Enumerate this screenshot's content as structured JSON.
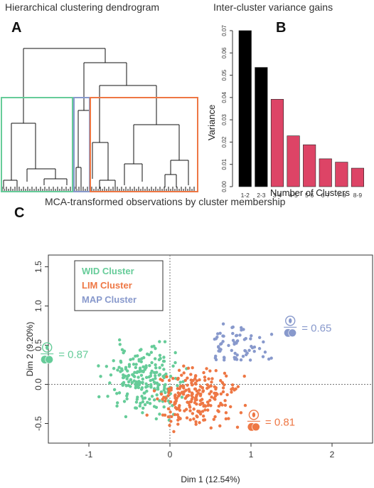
{
  "panels": {
    "a": {
      "letter": "A",
      "title": "Hierarchical clustering dendrogram"
    },
    "b": {
      "letter": "B",
      "title": "Inter-cluster variance gains"
    },
    "c": {
      "letter": "C",
      "title": "MCA-transformed observations by cluster membership"
    }
  },
  "colors": {
    "wid": "#66cc99",
    "lim": "#ee7744",
    "map": "#8899cc",
    "black_bar": "#000000",
    "pink_bar": "#dd4466"
  },
  "chart_data": [
    {
      "type": "dendrogram",
      "title": "Hierarchical clustering dendrogram",
      "clusters": [
        {
          "name": "",
          "color": "#66cc99"
        },
        {
          "name": "",
          "color": "#8899cc"
        },
        {
          "name": "",
          "color": "#ee7744"
        }
      ]
    },
    {
      "type": "bar",
      "title": "Inter-cluster variance gains",
      "categories": [
        "1-2",
        "2-3",
        "3-4",
        "4-5",
        "5-6",
        "6-7",
        "7-8",
        "8-9"
      ],
      "values": [
        0.07,
        0.0535,
        0.0392,
        0.0228,
        0.0188,
        0.0125,
        0.011,
        0.0083
      ],
      "bar_colors": [
        "#000000",
        "#000000",
        "#dd4466",
        "#dd4466",
        "#dd4466",
        "#dd4466",
        "#dd4466",
        "#dd4466"
      ],
      "xlabel": "Number of Clusters",
      "ylabel": "Variance",
      "ylim": [
        0,
        0.07
      ],
      "yticks": [
        "0.00",
        "0.01",
        "0.02",
        "0.03",
        "0.04",
        "0.05",
        "0.06",
        "0.07"
      ]
    },
    {
      "type": "scatter",
      "title": "MCA-transformed observations by cluster membership",
      "xlabel": "Dim 1 (12.54%)",
      "ylabel": "Dim 2 (9.20%)",
      "xlim": [
        -1.5,
        2.5
      ],
      "ylim": [
        -0.75,
        1.65
      ],
      "xticks": [
        "-1",
        "0",
        "1",
        "2"
      ],
      "yticks": [
        "-0.5",
        "0.0",
        "0.5",
        "1.0",
        "1.5"
      ],
      "legend": [
        "WID Cluster",
        "LIM Cluster",
        "MAP Cluster"
      ],
      "legend_position": "top-left",
      "series": [
        {
          "name": "WID Cluster",
          "color": "#66cc99",
          "center": [
            -0.3,
            0.05
          ],
          "spread": [
            0.22,
            0.2
          ],
          "count": 220
        },
        {
          "name": "LIM Cluster",
          "color": "#ee7744",
          "center": [
            0.3,
            -0.18
          ],
          "spread": [
            0.25,
            0.18
          ],
          "count": 230
        },
        {
          "name": "MAP Cluster",
          "color": "#8899cc",
          "center": [
            0.55,
            0.45
          ],
          "spread": [
            0.28,
            0.28
          ],
          "count": 70
        }
      ],
      "annotations": [
        {
          "text": "= 0.87",
          "cluster": "WID Cluster",
          "x": -1.2,
          "y": 0.38,
          "color": "#66cc99"
        },
        {
          "text": "= 0.65",
          "cluster": "MAP Cluster",
          "x": 1.8,
          "y": 0.72,
          "color": "#8899cc"
        },
        {
          "text": "= 0.81",
          "cluster": "LIM Cluster",
          "x": 1.35,
          "y": -0.48,
          "color": "#ee7744"
        }
      ]
    }
  ]
}
